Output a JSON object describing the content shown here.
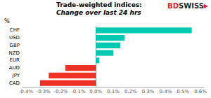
{
  "chart_data": {
    "type": "bar",
    "orientation": "horizontal",
    "title": "Trade-weighted indices:",
    "subtitle": "Change over last 24 hrs",
    "ylabel": "%",
    "categories": [
      "CHF",
      "USD",
      "GBP",
      "NZD",
      "EUR",
      "AUD",
      "JPY",
      "CAD"
    ],
    "values": [
      0.55,
      0.165,
      0.14,
      0.1,
      0.02,
      -0.175,
      -0.27,
      -0.32
    ],
    "colors": [
      "#00C9B1",
      "#00C9B1",
      "#00C9B1",
      "#00C9B1",
      "#00C9B1",
      "#EE3124",
      "#EE3124",
      "#EE3124"
    ],
    "xlim": [
      -0.42,
      0.62
    ],
    "xticks": [
      {
        "value": -0.4,
        "label": "-0.4%"
      },
      {
        "value": -0.3,
        "label": "-0.3%"
      },
      {
        "value": -0.2,
        "label": "-0.2%"
      },
      {
        "value": -0.1,
        "label": "-0.1%"
      },
      {
        "value": 0.0,
        "label": "0.0%"
      },
      {
        "value": 0.1,
        "label": "0.1%"
      },
      {
        "value": 0.2,
        "label": "0.2%"
      },
      {
        "value": 0.3,
        "label": "0.3%"
      },
      {
        "value": 0.4,
        "label": "0.4%"
      },
      {
        "value": 0.5,
        "label": "0.5%"
      },
      {
        "value": 0.6,
        "label": "0.6%"
      }
    ],
    "grid": false,
    "annotations": [
      {
        "text": "BD",
        "color": "#E8192C"
      },
      {
        "text": "SWISS",
        "color": "#231F20"
      },
      {
        "text": "▶",
        "color": "#E8192C"
      }
    ]
  }
}
